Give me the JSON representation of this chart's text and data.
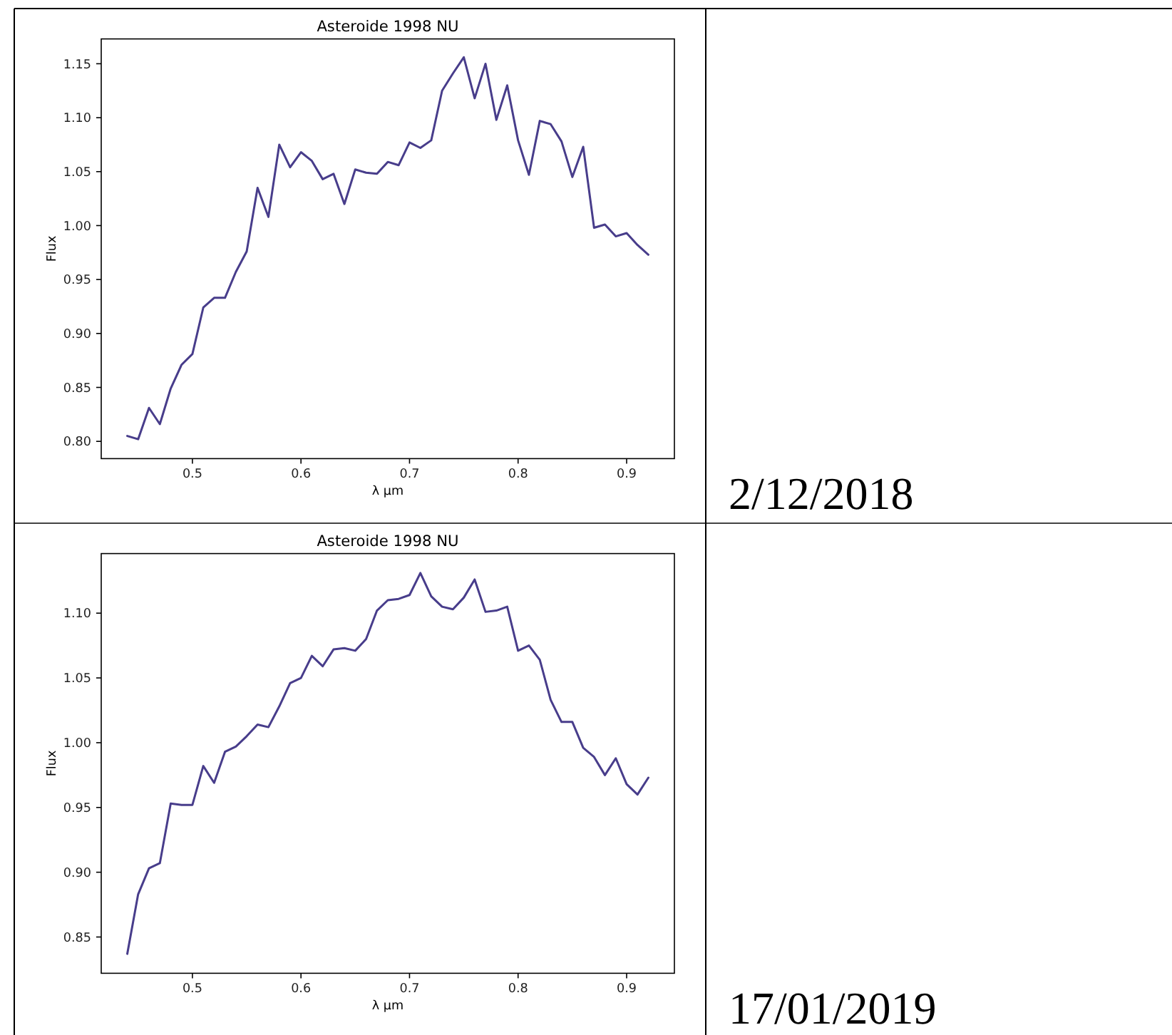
{
  "chart_data": [
    {
      "type": "line",
      "title": "Asteroide 1998 NU",
      "xlabel": "λ µm",
      "ylabel": "Flux",
      "x": [
        0.44,
        0.45,
        0.46,
        0.47,
        0.48,
        0.49,
        0.5,
        0.51,
        0.52,
        0.53,
        0.54,
        0.55,
        0.56,
        0.57,
        0.58,
        0.59,
        0.6,
        0.61,
        0.62,
        0.63,
        0.64,
        0.65,
        0.66,
        0.67,
        0.68,
        0.69,
        0.7,
        0.71,
        0.72,
        0.73,
        0.74,
        0.75,
        0.76,
        0.77,
        0.78,
        0.79,
        0.8,
        0.81,
        0.82,
        0.83,
        0.84,
        0.85,
        0.86,
        0.87,
        0.88,
        0.89,
        0.9,
        0.91,
        0.92
      ],
      "values": [
        0.805,
        0.802,
        0.831,
        0.816,
        0.849,
        0.871,
        0.881,
        0.924,
        0.933,
        0.933,
        0.957,
        0.976,
        1.035,
        1.008,
        1.075,
        1.054,
        1.068,
        1.06,
        1.043,
        1.048,
        1.02,
        1.052,
        1.049,
        1.048,
        1.059,
        1.056,
        1.077,
        1.072,
        1.079,
        1.125,
        1.141,
        1.156,
        1.118,
        1.15,
        1.098,
        1.13,
        1.079,
        1.047,
        1.097,
        1.094,
        1.078,
        1.045,
        1.073,
        0.998,
        1.001,
        0.99,
        0.993,
        0.982,
        0.973
      ],
      "color": "#483d8b",
      "xlim": [
        0.416,
        0.944
      ],
      "ylim": [
        0.784,
        1.173
      ],
      "xticks": [
        0.5,
        0.6,
        0.7,
        0.8,
        0.9
      ],
      "yticks": [
        {
          "value": 0.8,
          "label": "0.80"
        },
        0.85,
        {
          "value": 0.9,
          "label": "0.90"
        },
        0.95,
        {
          "value": 1.0,
          "label": "1.00"
        },
        1.05,
        {
          "value": 1.1,
          "label": "1.10"
        },
        1.15
      ],
      "annotations": [
        "2/12/2018"
      ]
    },
    {
      "type": "line",
      "title": "Asteroide 1998 NU",
      "xlabel": "λ µm",
      "ylabel": "Flux",
      "x": [
        0.44,
        0.45,
        0.46,
        0.47,
        0.48,
        0.49,
        0.5,
        0.51,
        0.52,
        0.53,
        0.54,
        0.55,
        0.56,
        0.57,
        0.58,
        0.59,
        0.6,
        0.61,
        0.62,
        0.63,
        0.64,
        0.65,
        0.66,
        0.67,
        0.68,
        0.69,
        0.7,
        0.71,
        0.72,
        0.73,
        0.74,
        0.75,
        0.76,
        0.77,
        0.78,
        0.79,
        0.8,
        0.81,
        0.82,
        0.83,
        0.84,
        0.85,
        0.86,
        0.87,
        0.88,
        0.89,
        0.9,
        0.91,
        0.92
      ],
      "values": [
        0.837,
        0.883,
        0.903,
        0.907,
        0.953,
        0.952,
        0.952,
        0.982,
        0.969,
        0.993,
        0.997,
        1.005,
        1.014,
        1.012,
        1.028,
        1.046,
        1.05,
        1.067,
        1.059,
        1.072,
        1.073,
        1.071,
        1.08,
        1.102,
        1.11,
        1.111,
        1.114,
        1.131,
        1.113,
        1.105,
        1.103,
        1.112,
        1.126,
        1.101,
        1.102,
        1.105,
        1.071,
        1.075,
        1.064,
        1.033,
        1.016,
        1.016,
        0.996,
        0.989,
        0.975,
        0.988,
        0.968,
        0.96,
        0.973
      ],
      "color": "#483d8b",
      "xlim": [
        0.416,
        0.944
      ],
      "ylim": [
        0.822,
        1.146
      ],
      "xticks": [
        0.5,
        0.6,
        0.7,
        0.8,
        0.9
      ],
      "yticks": [
        0.85,
        {
          "value": 0.9,
          "label": "0.90"
        },
        0.95,
        {
          "value": 1.0,
          "label": "1.00"
        },
        1.05,
        {
          "value": 1.1,
          "label": "1.10"
        }
      ],
      "annotations": [
        "17/01/2019"
      ]
    }
  ]
}
